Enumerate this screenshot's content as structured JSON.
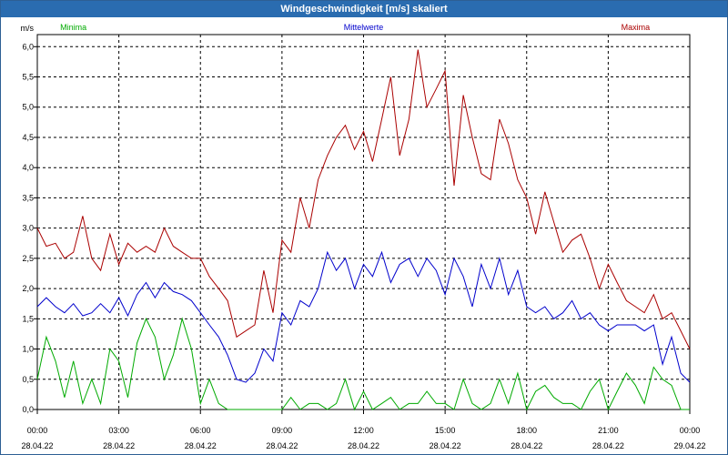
{
  "window": {
    "title": "Windgeschwindigkeit [m/s] skaliert"
  },
  "chart_data": {
    "type": "line",
    "title": "Windgeschwindigkeit [m/s] skaliert",
    "yunit": "m/s",
    "ylim": [
      0,
      6.2
    ],
    "yticks": [
      "0,0",
      "0,5",
      "1,0",
      "1,5",
      "2,0",
      "2,5",
      "3,0",
      "3,5",
      "4,0",
      "4,5",
      "5,0",
      "5,5",
      "6,0"
    ],
    "xlim": [
      0,
      24
    ],
    "xticks": [
      {
        "time": "00:00",
        "date": "28.04.22"
      },
      {
        "time": "03:00",
        "date": "28.04.22"
      },
      {
        "time": "06:00",
        "date": "28.04.22"
      },
      {
        "time": "09:00",
        "date": "28.04.22"
      },
      {
        "time": "12:00",
        "date": "28.04.22"
      },
      {
        "time": "15:00",
        "date": "28.04.22"
      },
      {
        "time": "18:00",
        "date": "28.04.22"
      },
      {
        "time": "21:00",
        "date": "28.04.22"
      },
      {
        "time": "00:00",
        "date": "29.04.22"
      }
    ],
    "grid": true,
    "legend": "top",
    "series": [
      {
        "name": "Minima",
        "color": "#00aa00",
        "x": [
          0,
          0.33,
          0.67,
          1,
          1.33,
          1.67,
          2,
          2.33,
          2.67,
          3,
          3.33,
          3.67,
          4,
          4.33,
          4.67,
          5,
          5.33,
          5.67,
          6,
          6.33,
          6.67,
          7,
          7.33,
          7.67,
          8,
          8.33,
          8.67,
          9,
          9.33,
          9.67,
          10,
          10.33,
          10.67,
          11,
          11.33,
          11.67,
          12,
          12.33,
          12.67,
          13,
          13.33,
          13.67,
          14,
          14.33,
          14.67,
          15,
          15.33,
          15.67,
          16,
          16.33,
          16.67,
          17,
          17.33,
          17.67,
          18,
          18.33,
          18.67,
          19,
          19.33,
          19.67,
          20,
          20.33,
          20.67,
          21,
          21.33,
          21.67,
          22,
          22.33,
          22.67,
          23,
          23.33,
          23.67,
          24
        ],
        "y": [
          0.5,
          1.2,
          0.8,
          0.2,
          0.8,
          0.1,
          0.5,
          0.1,
          1.0,
          0.8,
          0.2,
          1.1,
          1.5,
          1.2,
          0.5,
          0.9,
          1.5,
          1.0,
          0.1,
          0.5,
          0.1,
          0.0,
          0.0,
          0.0,
          0.0,
          0.0,
          0.0,
          0.0,
          0.2,
          0.0,
          0.1,
          0.1,
          0.0,
          0.1,
          0.5,
          0.0,
          0.3,
          0.0,
          0.1,
          0.2,
          0.0,
          0.1,
          0.1,
          0.3,
          0.1,
          0.1,
          0.0,
          0.5,
          0.1,
          0.0,
          0.1,
          0.5,
          0.1,
          0.6,
          0.0,
          0.3,
          0.4,
          0.2,
          0.1,
          0.1,
          0.0,
          0.3,
          0.5,
          0.0,
          0.3,
          0.6,
          0.4,
          0.1,
          0.7,
          0.5,
          0.4,
          0.0,
          0.0
        ]
      },
      {
        "name": "Mittelwerte",
        "color": "#0000cc",
        "x": [
          0,
          0.33,
          0.67,
          1,
          1.33,
          1.67,
          2,
          2.33,
          2.67,
          3,
          3.33,
          3.67,
          4,
          4.33,
          4.67,
          5,
          5.33,
          5.67,
          6,
          6.33,
          6.67,
          7,
          7.33,
          7.67,
          8,
          8.33,
          8.67,
          9,
          9.33,
          9.67,
          10,
          10.33,
          10.67,
          11,
          11.33,
          11.67,
          12,
          12.33,
          12.67,
          13,
          13.33,
          13.67,
          14,
          14.33,
          14.67,
          15,
          15.33,
          15.67,
          16,
          16.33,
          16.67,
          17,
          17.33,
          17.67,
          18,
          18.33,
          18.67,
          19,
          19.33,
          19.67,
          20,
          20.33,
          20.67,
          21,
          21.33,
          21.67,
          22,
          22.33,
          22.67,
          23,
          23.33,
          23.67,
          24
        ],
        "y": [
          1.7,
          1.85,
          1.7,
          1.6,
          1.75,
          1.55,
          1.6,
          1.75,
          1.6,
          1.85,
          1.55,
          1.9,
          2.1,
          1.85,
          2.1,
          1.95,
          1.9,
          1.8,
          1.6,
          1.4,
          1.2,
          0.9,
          0.5,
          0.45,
          0.6,
          1.0,
          0.8,
          1.6,
          1.4,
          1.8,
          1.7,
          2.0,
          2.6,
          2.3,
          2.5,
          2.0,
          2.4,
          2.2,
          2.6,
          2.1,
          2.4,
          2.5,
          2.2,
          2.5,
          2.3,
          1.9,
          2.5,
          2.2,
          1.7,
          2.4,
          2.0,
          2.5,
          1.9,
          2.3,
          1.7,
          1.6,
          1.7,
          1.5,
          1.6,
          1.8,
          1.5,
          1.6,
          1.4,
          1.3,
          1.4,
          1.4,
          1.4,
          1.3,
          1.4,
          0.75,
          1.2,
          0.6,
          0.45
        ]
      },
      {
        "name": "Maxima",
        "color": "#aa0000",
        "x": [
          0,
          0.33,
          0.67,
          1,
          1.33,
          1.67,
          2,
          2.33,
          2.67,
          3,
          3.33,
          3.67,
          4,
          4.33,
          4.67,
          5,
          5.33,
          5.67,
          6,
          6.33,
          6.67,
          7,
          7.33,
          7.67,
          8,
          8.33,
          8.67,
          9,
          9.33,
          9.67,
          10,
          10.33,
          10.67,
          11,
          11.33,
          11.67,
          12,
          12.33,
          12.67,
          13,
          13.33,
          13.67,
          14,
          14.33,
          14.67,
          15,
          15.33,
          15.67,
          16,
          16.33,
          16.67,
          17,
          17.33,
          17.67,
          18,
          18.33,
          18.67,
          19,
          19.33,
          19.67,
          20,
          20.33,
          20.67,
          21,
          21.33,
          21.67,
          22,
          22.33,
          22.67,
          23,
          23.33,
          23.67,
          24
        ],
        "y": [
          3.0,
          2.7,
          2.75,
          2.5,
          2.6,
          3.2,
          2.5,
          2.3,
          2.9,
          2.4,
          2.75,
          2.6,
          2.7,
          2.6,
          3.0,
          2.7,
          2.6,
          2.5,
          2.5,
          2.2,
          2.0,
          1.8,
          1.2,
          1.3,
          1.4,
          2.3,
          1.6,
          2.8,
          2.6,
          3.5,
          3.0,
          3.8,
          4.2,
          4.5,
          4.7,
          4.3,
          4.6,
          4.1,
          4.8,
          5.5,
          4.2,
          4.8,
          5.95,
          5.0,
          5.3,
          5.6,
          3.7,
          5.2,
          4.5,
          3.9,
          3.8,
          4.8,
          4.4,
          3.8,
          3.5,
          2.9,
          3.6,
          3.1,
          2.6,
          2.8,
          2.9,
          2.5,
          2.0,
          2.4,
          2.1,
          1.8,
          1.7,
          1.6,
          1.9,
          1.5,
          1.6,
          1.3,
          1.0
        ]
      }
    ]
  }
}
